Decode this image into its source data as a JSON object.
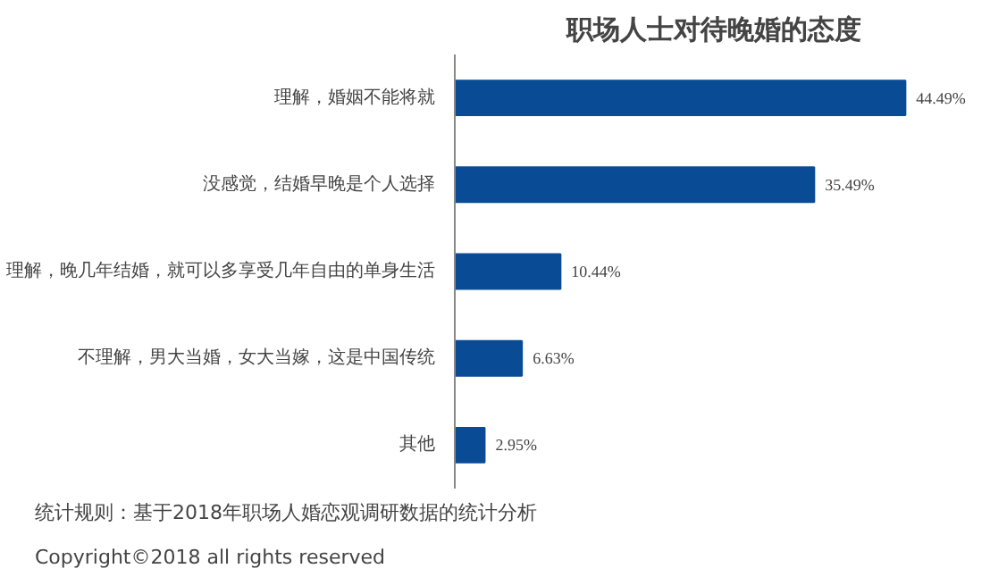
{
  "chart_data": {
    "type": "bar",
    "orientation": "horizontal",
    "title": "职场人士对待晚婚的态度",
    "categories": [
      "理解，婚姻不能将就",
      "没感觉，结婚早晚是个人选择",
      "理解，晚几年结婚，就可以多享受几年自由的单身生活",
      "不理解，男大当婚，女大当嫁，这是中国传统",
      "其他"
    ],
    "values": [
      44.49,
      35.49,
      10.44,
      6.63,
      2.95
    ],
    "value_labels": [
      "44.49%",
      "35.49%",
      "10.44%",
      "6.63%",
      "2.95%"
    ],
    "color": "#0a4b96",
    "annotations": [
      "统计规则：基于2018年职场人婚恋观调研数据的统计分析",
      "Copyright©2018 all rights reserved"
    ]
  }
}
